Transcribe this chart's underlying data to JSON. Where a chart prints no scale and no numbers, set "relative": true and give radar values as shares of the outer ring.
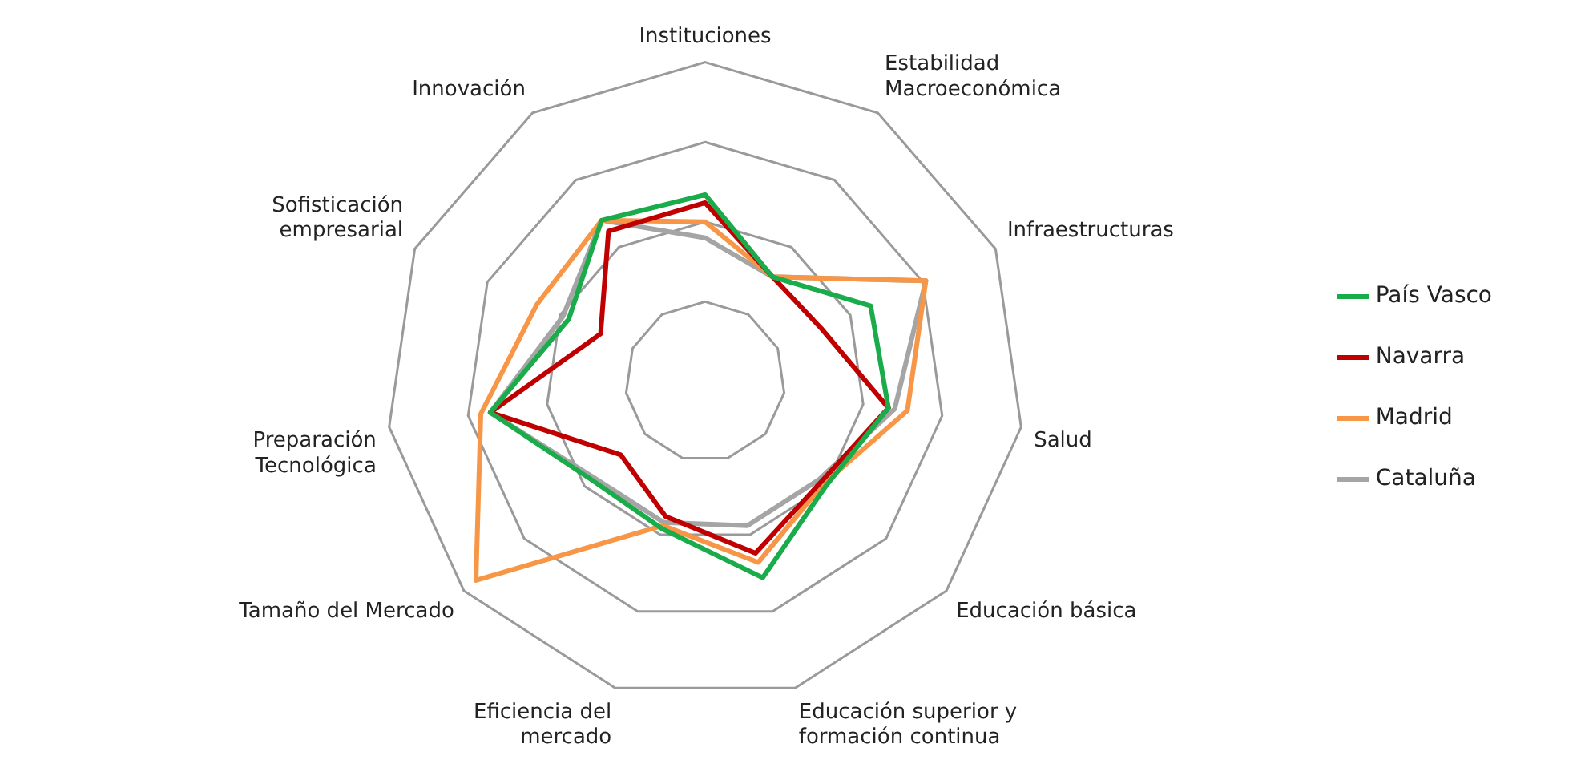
{
  "chart_data": {
    "type": "radar",
    "relative": true,
    "legend": "right",
    "marker": "none",
    "grid": true,
    "categories": [
      "Instituciones",
      "Estabilidad Macroeconómica",
      "Infraestructuras",
      "Salud",
      "Educación básica",
      "Educación superior y formación continua",
      "Eficiencia del mercado",
      "Tamaño del Mercado",
      "Preparación Tecnológica",
      "Sofisticación empresarial",
      "Innovación"
    ],
    "series": [
      {
        "name": "País Vasco",
        "color": "#1aab4b",
        "values": [
          0.585,
          0.39,
          0.57,
          0.58,
          0.5,
          0.64,
          0.48,
          0.47,
          0.68,
          0.47,
          0.6
        ]
      },
      {
        "name": "Navarra",
        "color": "#c00000",
        "values": [
          0.56,
          0.39,
          0.4,
          0.58,
          0.48,
          0.56,
          0.44,
          0.35,
          0.68,
          0.36,
          0.56
        ]
      },
      {
        "name": "Madrid",
        "color": "#f79646",
        "values": [
          0.5,
          0.39,
          0.76,
          0.64,
          0.49,
          0.59,
          0.47,
          0.95,
          0.71,
          0.58,
          0.6
        ]
      },
      {
        "name": "Cataluña",
        "color": "#a5a5a5",
        "values": [
          0.45,
          0.39,
          0.76,
          0.6,
          0.47,
          0.47,
          0.46,
          0.46,
          0.68,
          0.49,
          0.6
        ]
      }
    ]
  }
}
